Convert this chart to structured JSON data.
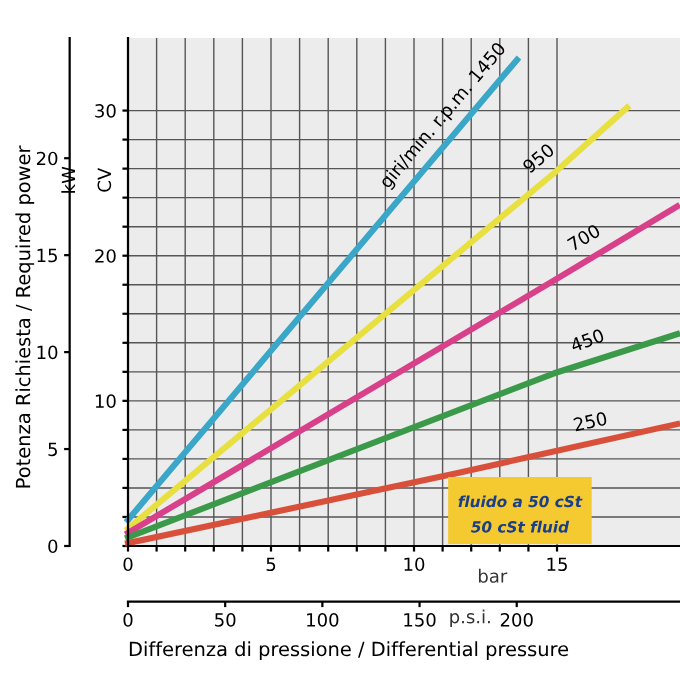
{
  "chart_data": {
    "type": "line",
    "y2label": "Potenza Richiesta / Required power",
    "xlabel": "Differenza di pressione / Differential pressure",
    "xlim": [
      0,
      19.3
    ],
    "ylim": [
      0,
      35
    ],
    "y2lim": [
      0,
      26.2
    ],
    "x2lim": [
      0,
      284
    ],
    "xticks": [
      0,
      {
        "value": 1,
        "label": null
      },
      {
        "value": 2,
        "label": null
      },
      {
        "value": 3,
        "label": null
      },
      {
        "value": 4,
        "label": null
      },
      5,
      {
        "value": 6,
        "label": null
      },
      {
        "value": 7,
        "label": null
      },
      {
        "value": 8,
        "label": null
      },
      {
        "value": 9,
        "label": null
      },
      10,
      {
        "value": 11,
        "label": null
      },
      {
        "value": 12,
        "label": null
      },
      {
        "value": 13,
        "label": null
      },
      {
        "value": 14,
        "label": null
      },
      15
    ],
    "yticks": [
      {
        "value": 0,
        "label": null
      },
      {
        "value": 2,
        "label": null
      },
      {
        "value": 4,
        "label": null
      },
      {
        "value": 6,
        "label": null
      },
      {
        "value": 8,
        "label": null
      },
      10,
      {
        "value": 12,
        "label": null
      },
      {
        "value": 14,
        "label": null
      },
      {
        "value": 16,
        "label": null
      },
      {
        "value": 18,
        "label": null
      },
      20,
      {
        "value": 22,
        "label": null
      },
      {
        "value": 24,
        "label": null
      },
      {
        "value": 26,
        "label": null
      },
      {
        "value": 28,
        "label": null
      },
      30
    ],
    "y2ticks": [
      0,
      5,
      10,
      15,
      20
    ],
    "x2ticks": [
      0,
      50,
      100,
      150,
      200
    ],
    "grid": true,
    "legend": false,
    "marker": "none",
    "line_style": "solid",
    "series": [
      {
        "name": "giri/min. r.p.m. 1450",
        "color": "#3aa6c8",
        "x": [
          0,
          12.1,
          13.6
        ],
        "values": [
          1.8,
          30,
          33.5
        ]
      },
      {
        "name": "950",
        "color": "#e8e040",
        "x": [
          0,
          14.9,
          17.45
        ],
        "values": [
          1.2,
          25.7,
          30.2
        ]
      },
      {
        "name": "700",
        "color": "#d9408a",
        "x": [
          0,
          14.9,
          19.2
        ],
        "values": [
          0.9,
          18.3,
          23.4
        ]
      },
      {
        "name": "450",
        "color": "#3a9a4a",
        "x": [
          0,
          14.9,
          19.2
        ],
        "values": [
          0.6,
          11.9,
          14.6
        ]
      },
      {
        "name": "250",
        "color": "#d9503a",
        "x": [
          0,
          11.45,
          19.2
        ],
        "values": [
          0.2,
          5.0,
          8.4
        ]
      }
    ],
    "annotations": [
      "kW",
      "CV",
      "bar",
      "p.s.i.",
      "fluido a 50 cSt",
      "50 cSt fluid"
    ]
  }
}
